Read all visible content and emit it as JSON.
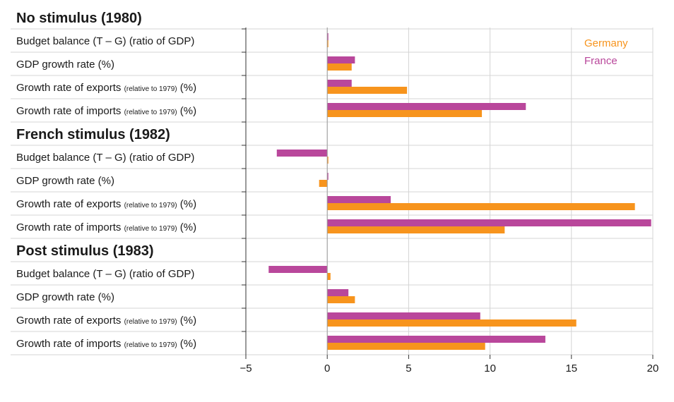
{
  "chart_data": {
    "type": "bar",
    "orientation": "horizontal",
    "xlim": [
      -5,
      20
    ],
    "xticks": [
      "−5",
      "0",
      "5",
      "10",
      "15",
      "20"
    ],
    "xtick_values": [
      -5,
      0,
      5,
      10,
      15,
      20
    ],
    "grid": true,
    "legend_position": "top-right",
    "series": [
      {
        "name": "Germany",
        "color": "#f7941d"
      },
      {
        "name": "France",
        "color": "#b9479b"
      }
    ],
    "groups": [
      {
        "title": "No stimulus (1980)",
        "rows": [
          {
            "label": "Budget balance (T – G) (ratio of GDP)",
            "label_small": "",
            "label_suffix": "",
            "germany": 0.05,
            "france": 0.05
          },
          {
            "label": "GDP growth rate (%)",
            "label_small": "",
            "label_suffix": "",
            "germany": 1.5,
            "france": 1.7
          },
          {
            "label": "Growth rate of exports ",
            "label_small": "(relative to 1979)",
            "label_suffix": " (%)",
            "germany": 4.9,
            "france": 1.5
          },
          {
            "label": "Growth rate of imports ",
            "label_small": "(relative to 1979)",
            "label_suffix": " (%)",
            "germany": 9.5,
            "france": 12.2
          }
        ]
      },
      {
        "title": "French stimulus (1982)",
        "rows": [
          {
            "label": "Budget balance (T – G) (ratio of GDP)",
            "label_small": "",
            "label_suffix": "",
            "germany": 0.05,
            "france": -3.1
          },
          {
            "label": "GDP growth rate (%)",
            "label_small": "",
            "label_suffix": "",
            "germany": -0.5,
            "france": 0.05
          },
          {
            "label": "Growth rate of exports ",
            "label_small": "(relative to 1979)",
            "label_suffix": " (%)",
            "germany": 18.9,
            "france": 3.9
          },
          {
            "label": "Growth rate of imports ",
            "label_small": "(relative to 1979)",
            "label_suffix": " (%)",
            "germany": 10.9,
            "france": 19.9
          }
        ]
      },
      {
        "title": "Post stimulus (1983)",
        "rows": [
          {
            "label": "Budget balance (T – G) (ratio of GDP)",
            "label_small": "",
            "label_suffix": "",
            "germany": 0.2,
            "france": -3.6
          },
          {
            "label": "GDP growth rate (%)",
            "label_small": "",
            "label_suffix": "",
            "germany": 1.7,
            "france": 1.3
          },
          {
            "label": "Growth rate of exports ",
            "label_small": "(relative to 1979)",
            "label_suffix": " (%)",
            "germany": 15.3,
            "france": 9.4
          },
          {
            "label": "Growth rate of imports ",
            "label_small": "(relative to 1979)",
            "label_suffix": " (%)",
            "germany": 9.7,
            "france": 13.4
          }
        ]
      }
    ]
  }
}
